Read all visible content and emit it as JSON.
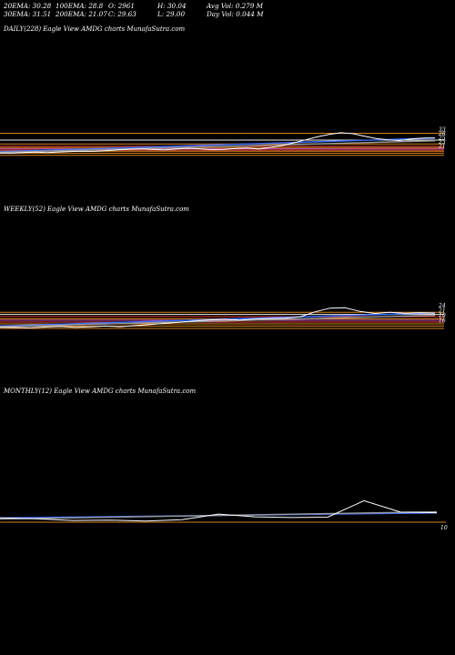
{
  "stats": {
    "ema20": "20EMA: 30.28",
    "ema100": "100EMA: 28.8",
    "open": "O: 2961",
    "high": "H: 30.04",
    "avg_vol": "Avg Vol: 0.279 M",
    "ema30": "30EMA: 31.51",
    "ema200": "200EMA: 21.07",
    "close": "C: 29.63",
    "low": "L: 29.00",
    "day_vol": "Day Vol: 0.044 M"
  },
  "panels": {
    "daily": {
      "title": "DAILY(228) Eagle View AMDG charts MunafaSutra.com"
    },
    "weekly": {
      "title": "WEEKLY(52) Eagle View AMDG charts MunafaSutra.com"
    },
    "monthly": {
      "title": "MONTHLY(12) Eagle View AMDG charts MunafaSutra.com"
    }
  },
  "colors": {
    "background": "#000000",
    "price": "#ffffff",
    "ema_blue": "#3b6cff",
    "band_orange": "#d9821a",
    "band_red": "#e0403a",
    "band_magenta": "#d04fb0",
    "band_white": "#f2f2f2",
    "ema_grey": "#9a9a9a"
  },
  "chart_data": [
    {
      "type": "line",
      "name": "daily",
      "title": "DAILY(228) Eagle View AMDG charts MunafaSutra.com",
      "ylim": [
        0,
        40
      ],
      "y_tick_labels": [
        "33",
        "28",
        "25",
        "23",
        "21"
      ],
      "price": [
        18.5,
        18.4,
        18.9,
        19.1,
        18.8,
        19.3,
        19.6,
        19.9,
        19.7,
        20.2,
        20.8,
        21.3,
        21.6,
        21.2,
        20.9,
        21.5,
        22.0,
        21.6,
        21.0,
        21.2,
        21.8,
        22.3,
        21.5,
        22.6,
        24.0,
        26.0,
        28.2,
        30.4,
        32.1,
        33.4,
        32.7,
        30.8,
        29.1,
        28.2,
        27.6,
        28.9,
        29.5,
        29.63
      ],
      "ema_levels": [
        {
          "values": [
            19.5,
            29.5
          ],
          "color": "#3b6cff"
        },
        {
          "values": [
            19.0,
            27.5
          ],
          "color": "#9a9a9a"
        }
      ],
      "bands": [
        {
          "value": 33.0,
          "color": "#d9821a"
        },
        {
          "value": 28.0,
          "color": "#f2f2f2"
        },
        {
          "value": 25.2,
          "color": "#d9821a"
        },
        {
          "value": 23.4,
          "color": "#e0403a"
        },
        {
          "value": 22.5,
          "color": "#d9821a"
        },
        {
          "value": 21.6,
          "color": "#d04fb0"
        },
        {
          "value": 20.7,
          "color": "#e0403a"
        },
        {
          "value": 19.8,
          "color": "#d9821a"
        },
        {
          "value": 18.4,
          "color": "#d9821a"
        },
        {
          "value": 16.8,
          "color": "#d9821a"
        }
      ]
    },
    {
      "type": "line",
      "name": "weekly",
      "title": "WEEKLY(52) Eagle View AMDG charts MunafaSutra.com",
      "ylim": [
        0,
        40
      ],
      "y_tick_labels": [
        "24",
        "21",
        "19",
        "16"
      ],
      "price": [
        16.2,
        16.0,
        15.9,
        16.3,
        16.6,
        16.1,
        16.4,
        16.9,
        16.5,
        17.2,
        17.8,
        18.6,
        19.4,
        20.2,
        20.8,
        21.2,
        20.7,
        21.3,
        21.6,
        21.9,
        22.6,
        25.8,
        28.2,
        28.4,
        26.1,
        24.8,
        25.6,
        24.9,
        25.3,
        25.0
      ],
      "ema_levels": [
        {
          "values": [
            17.0,
            25.2
          ],
          "color": "#3b6cff"
        },
        {
          "values": [
            16.5,
            23.6
          ],
          "color": "#9a9a9a"
        }
      ],
      "bands": [
        {
          "value": 25.6,
          "color": "#d9821a"
        },
        {
          "value": 24.2,
          "color": "#f2f2f2"
        },
        {
          "value": 22.8,
          "color": "#e0403a"
        },
        {
          "value": 21.4,
          "color": "#d9821a"
        },
        {
          "value": 20.6,
          "color": "#d04fb0"
        },
        {
          "value": 19.4,
          "color": "#e0403a"
        },
        {
          "value": 18.3,
          "color": "#d9821a"
        },
        {
          "value": 16.9,
          "color": "#d9821a"
        },
        {
          "value": 15.4,
          "color": "#d9821a"
        }
      ]
    },
    {
      "type": "line",
      "name": "monthly",
      "title": "MONTHLY(12) Eagle View AMDG charts MunafaSutra.com",
      "ylim": [
        0,
        40
      ],
      "y_tick_labels": [
        "10"
      ],
      "price": [
        10.2,
        9.8,
        8.9,
        9.1,
        8.6,
        9.3,
        12.2,
        10.8,
        10.4,
        10.6,
        19.1,
        13.2,
        12.9
      ],
      "ema_levels": [
        {
          "values": [
            10.2,
            12.8
          ],
          "color": "#3b6cff"
        },
        {
          "values": [
            9.6,
            13.4
          ],
          "color": "#9a9a9a"
        }
      ],
      "bands": [
        {
          "value": 8.0,
          "color": "#d9821a"
        }
      ]
    }
  ]
}
